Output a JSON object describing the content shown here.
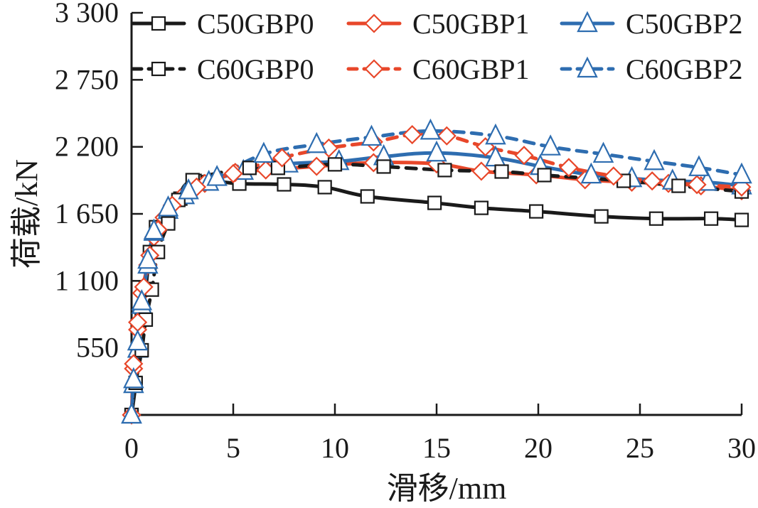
{
  "chart_data": {
    "type": "line",
    "title": "",
    "xlabel": "滑移/mm",
    "ylabel": "荷载/kN",
    "xlim": [
      0,
      30
    ],
    "ylim": [
      0,
      3300
    ],
    "xticks": [
      0,
      5,
      10,
      15,
      20,
      25,
      30
    ],
    "xtick_labels": [
      "0",
      "5",
      "10",
      "15",
      "20",
      "25",
      "30"
    ],
    "yticks": [
      550,
      1100,
      1650,
      2200,
      2750,
      3300
    ],
    "ytick_labels": [
      "550",
      "1 100",
      "1 650",
      "2 200",
      "2 750",
      "3 300"
    ],
    "grid": false,
    "legend_position": "top",
    "series": [
      {
        "name": "C50GBP0",
        "color": "#1a1a1a",
        "dash": "solid",
        "marker": "square",
        "x": [
          0,
          0.2,
          0.3,
          0.5,
          0.7,
          0.9,
          1.2,
          1.8,
          2.4,
          3.1,
          5.3,
          7.5,
          9.5,
          11.6,
          14.9,
          17.2,
          19.9,
          23.1,
          25.8,
          28.5,
          30
        ],
        "y": [
          0,
          257,
          531,
          782,
          1034,
          1337,
          1541,
          1582,
          1775,
          1921,
          1898,
          1892,
          1869,
          1793,
          1740,
          1699,
          1670,
          1629,
          1611,
          1611,
          1600
        ]
      },
      {
        "name": "C50GBP1",
        "color": "#e8472a",
        "dash": "solid",
        "marker": "diamond",
        "x": [
          0,
          0.1,
          0.3,
          0.5,
          0.8,
          1.1,
          1.6,
          2.4,
          3.6,
          5.1,
          6.6,
          9.1,
          11.9,
          15.0,
          17.2,
          19.9,
          22.3,
          24.6,
          26.4,
          28.0,
          30
        ],
        "y": [
          0,
          380,
          700,
          1000,
          1230,
          1460,
          1620,
          1780,
          1900,
          1990,
          2010,
          2040,
          2070,
          2060,
          2000,
          1970,
          1930,
          1910,
          1900,
          1880,
          1840
        ]
      },
      {
        "name": "C50GBP2",
        "color": "#2e6db0",
        "dash": "solid",
        "marker": "triangle",
        "x": [
          0,
          0.1,
          0.3,
          0.5,
          0.8,
          1.1,
          1.8,
          2.6,
          3.8,
          5.5,
          7.7,
          10.2,
          12.4,
          15.0,
          17.9,
          20.1,
          22.6,
          24.6,
          26.6,
          28.3,
          30
        ],
        "y": [
          0,
          250,
          540,
          900,
          1230,
          1500,
          1680,
          1800,
          1910,
          2000,
          2060,
          2080,
          2120,
          2150,
          2110,
          2040,
          1970,
          1940,
          1920,
          1910,
          1880
        ]
      },
      {
        "name": "C60GBP0",
        "color": "#1a1a1a",
        "dash": "dashed",
        "marker": "square",
        "x": [
          0,
          0.2,
          0.5,
          0.7,
          1.0,
          1.3,
          1.8,
          2.3,
          3.0,
          5.8,
          7.2,
          10.0,
          12.4,
          15.4,
          18.2,
          20.3,
          24.2,
          26.9,
          30
        ],
        "y": [
          0,
          263,
          531,
          782,
          1028,
          1337,
          1571,
          1764,
          1927,
          2027,
          2027,
          2056,
          2038,
          2009,
          1997,
          1968,
          1921,
          1880,
          1833
        ]
      },
      {
        "name": "C60GBP1",
        "color": "#e8472a",
        "dash": "dashed",
        "marker": "diamond",
        "x": [
          0,
          0.1,
          0.3,
          0.6,
          0.9,
          1.3,
          2.0,
          3.2,
          5.0,
          7.4,
          9.7,
          11.9,
          13.8,
          15.5,
          17.4,
          19.3,
          21.5,
          23.7,
          25.6,
          27.8,
          30
        ],
        "y": [
          0,
          420,
          760,
          1050,
          1310,
          1520,
          1720,
          1870,
          1980,
          2110,
          2190,
          2240,
          2300,
          2290,
          2200,
          2130,
          2030,
          1960,
          1920,
          1890,
          1870
        ]
      },
      {
        "name": "C60GBP2",
        "color": "#2e6db0",
        "dash": "dashed",
        "marker": "triangle",
        "x": [
          0,
          0.1,
          0.3,
          0.5,
          0.8,
          1.1,
          1.8,
          2.8,
          4.2,
          6.5,
          9.1,
          11.8,
          14.7,
          17.9,
          20.6,
          23.2,
          25.7,
          27.9,
          30
        ],
        "y": [
          0,
          290,
          600,
          930,
          1270,
          1510,
          1700,
          1840,
          1950,
          2140,
          2220,
          2280,
          2330,
          2290,
          2200,
          2140,
          2080,
          2030,
          1970
        ]
      }
    ]
  }
}
